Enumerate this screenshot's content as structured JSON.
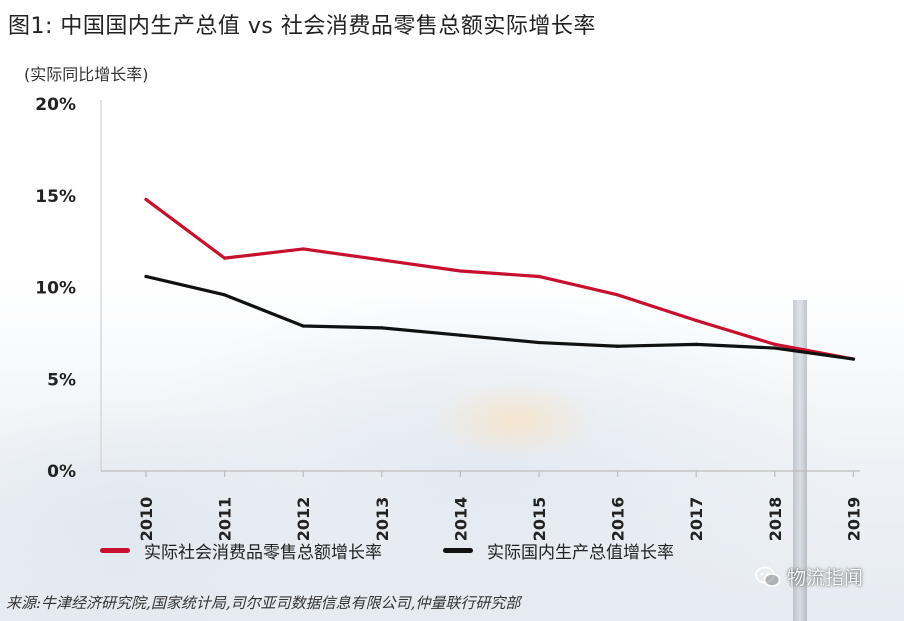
{
  "header": {
    "title": "图1:  中国国内生产总值 vs 社会消费品零售总额实际增长率",
    "unit_label": "(实际同比增长率)"
  },
  "chart_data": {
    "type": "line",
    "x": [
      "2010",
      "2011",
      "2012",
      "2013",
      "2014",
      "2015",
      "2016",
      "2017",
      "2018",
      "2019"
    ],
    "series": [
      {
        "name": "实际社会消费品零售总额增长率",
        "color": "#c8102e",
        "values": [
          14.8,
          11.6,
          12.1,
          11.5,
          10.9,
          10.6,
          9.6,
          8.2,
          6.9,
          6.1
        ]
      },
      {
        "name": "实际国内生产总值增长率",
        "color": "#111111",
        "values": [
          10.6,
          9.6,
          7.9,
          7.8,
          7.4,
          7.0,
          6.8,
          6.9,
          6.7,
          6.1
        ]
      }
    ],
    "ylim": [
      0,
      20
    ],
    "yticks": [
      "0%",
      "5%",
      "10%",
      "15%",
      "20%"
    ],
    "ytick_values": [
      0,
      5,
      10,
      15,
      20
    ],
    "legend_position": "bottom",
    "grid": false
  },
  "footer": {
    "source": "来源:牛津经济研究院,国家统计局,司尔亚司数据信息有限公司,仲量联行研究部",
    "watermark": "物流指闻",
    "watermark_icon": "wechat-icon"
  }
}
